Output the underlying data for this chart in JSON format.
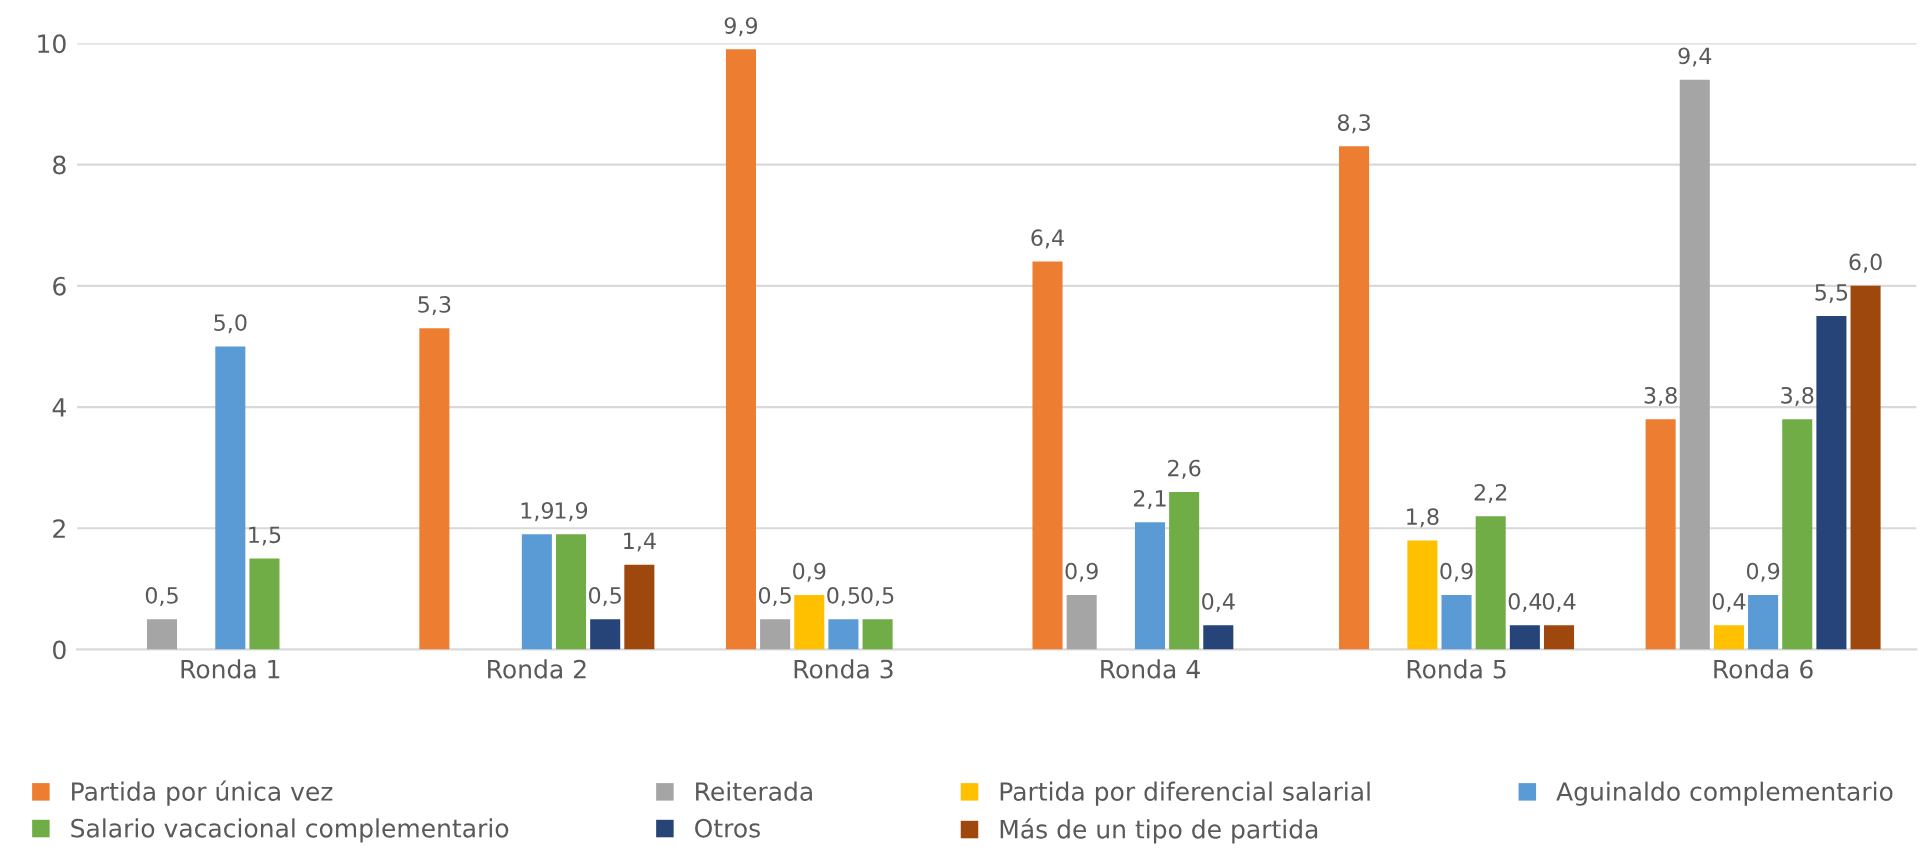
{
  "chart_data": {
    "type": "bar",
    "categories": [
      "Ronda 1",
      "Ronda 2",
      "Ronda 3",
      "Ronda 4",
      "Ronda 5",
      "Ronda 6"
    ],
    "series": [
      {
        "name": "Partida por única vez",
        "color": "#ed7d31",
        "values": [
          null,
          5.3,
          9.9,
          6.4,
          8.3,
          3.8
        ],
        "value_labels": [
          null,
          "5,3",
          "9,9",
          "6,4",
          "8,3",
          "3,8"
        ]
      },
      {
        "name": "Reiterada",
        "color": "#a5a5a5",
        "values": [
          0.5,
          null,
          0.5,
          0.9,
          null,
          9.4
        ],
        "value_labels": [
          "0,5",
          null,
          "0,5",
          "0,9",
          null,
          "9,4"
        ]
      },
      {
        "name": "Partida por diferencial salarial",
        "color": "#ffc000",
        "values": [
          null,
          null,
          0.9,
          null,
          1.8,
          0.4
        ],
        "value_labels": [
          null,
          null,
          "0,9",
          null,
          "1,8",
          "0,4"
        ]
      },
      {
        "name": "Aguinaldo complementario",
        "color": "#5b9bd5",
        "values": [
          5.0,
          1.9,
          0.5,
          2.1,
          0.9,
          0.9
        ],
        "value_labels": [
          "5,0",
          "1,9",
          "0,5",
          "2,1",
          "0,9",
          "0,9"
        ]
      },
      {
        "name": "Salario vacacional complementario",
        "color": "#70ad47",
        "values": [
          1.5,
          1.9,
          0.5,
          2.6,
          2.2,
          3.8
        ],
        "value_labels": [
          "1,5",
          "1,9",
          "0,5",
          "2,6",
          "2,2",
          "3,8"
        ]
      },
      {
        "name": "Otros",
        "color": "#264478",
        "values": [
          null,
          0.5,
          null,
          0.4,
          0.4,
          5.5
        ],
        "value_labels": [
          null,
          "0,5",
          null,
          "0,4",
          "0,4",
          "5,5"
        ]
      },
      {
        "name": "Más de un tipo de partida",
        "color": "#9e480e",
        "values": [
          null,
          1.4,
          null,
          null,
          0.4,
          6.0
        ],
        "value_labels": [
          null,
          "1,4",
          null,
          null,
          "0,4",
          "6,0"
        ]
      }
    ],
    "ylim": [
      0,
      10
    ],
    "yticks": [
      0,
      2,
      4,
      6,
      8,
      10
    ],
    "grid": "y",
    "legend": "bottom"
  }
}
